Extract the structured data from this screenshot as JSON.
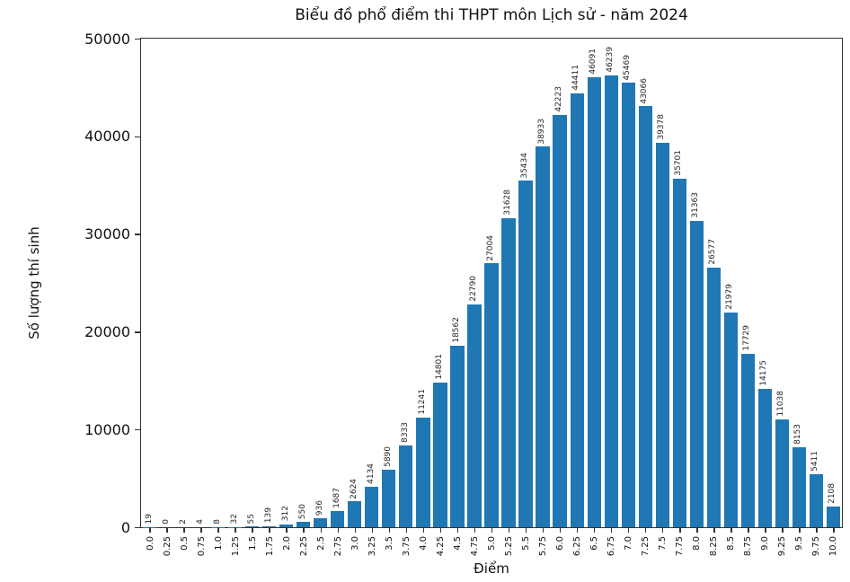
{
  "chart_data": {
    "type": "bar",
    "title": "Biểu đồ phổ điểm thi THPT môn Lịch sử - năm 2024",
    "xlabel": "Điểm",
    "ylabel": "Số lượng thí sinh",
    "categories": [
      "0.0",
      "0.25",
      "0.5",
      "0.75",
      "1.0",
      "1.25",
      "1.5",
      "1.75",
      "2.0",
      "2.25",
      "2.5",
      "2.75",
      "3.0",
      "3.25",
      "3.5",
      "3.75",
      "4.0",
      "4.25",
      "4.5",
      "4.75",
      "5.0",
      "5.25",
      "5.5",
      "5.75",
      "6.0",
      "6.25",
      "6.5",
      "6.75",
      "7.0",
      "7.25",
      "7.5",
      "7.75",
      "8.0",
      "8.25",
      "8.5",
      "8.75",
      "9.0",
      "9.25",
      "9.5",
      "9.75",
      "10.0"
    ],
    "values": [
      19,
      0,
      2,
      4,
      8,
      32,
      55,
      139,
      312,
      550,
      936,
      1687,
      2624,
      4134,
      5890,
      8333,
      11241,
      14801,
      18562,
      22790,
      27004,
      31628,
      35434,
      38933,
      42223,
      44411,
      46091,
      46239,
      45469,
      43066,
      39378,
      35701,
      31363,
      26577,
      21979,
      17729,
      14175,
      11038,
      8153,
      5411,
      2108
    ],
    "ylim": [
      0,
      50000
    ],
    "yticks": [
      0,
      10000,
      20000,
      30000,
      40000,
      50000
    ],
    "bar_color": "#1f77b4",
    "bar_label_color": "#262626",
    "grid": false,
    "legend": null
  }
}
